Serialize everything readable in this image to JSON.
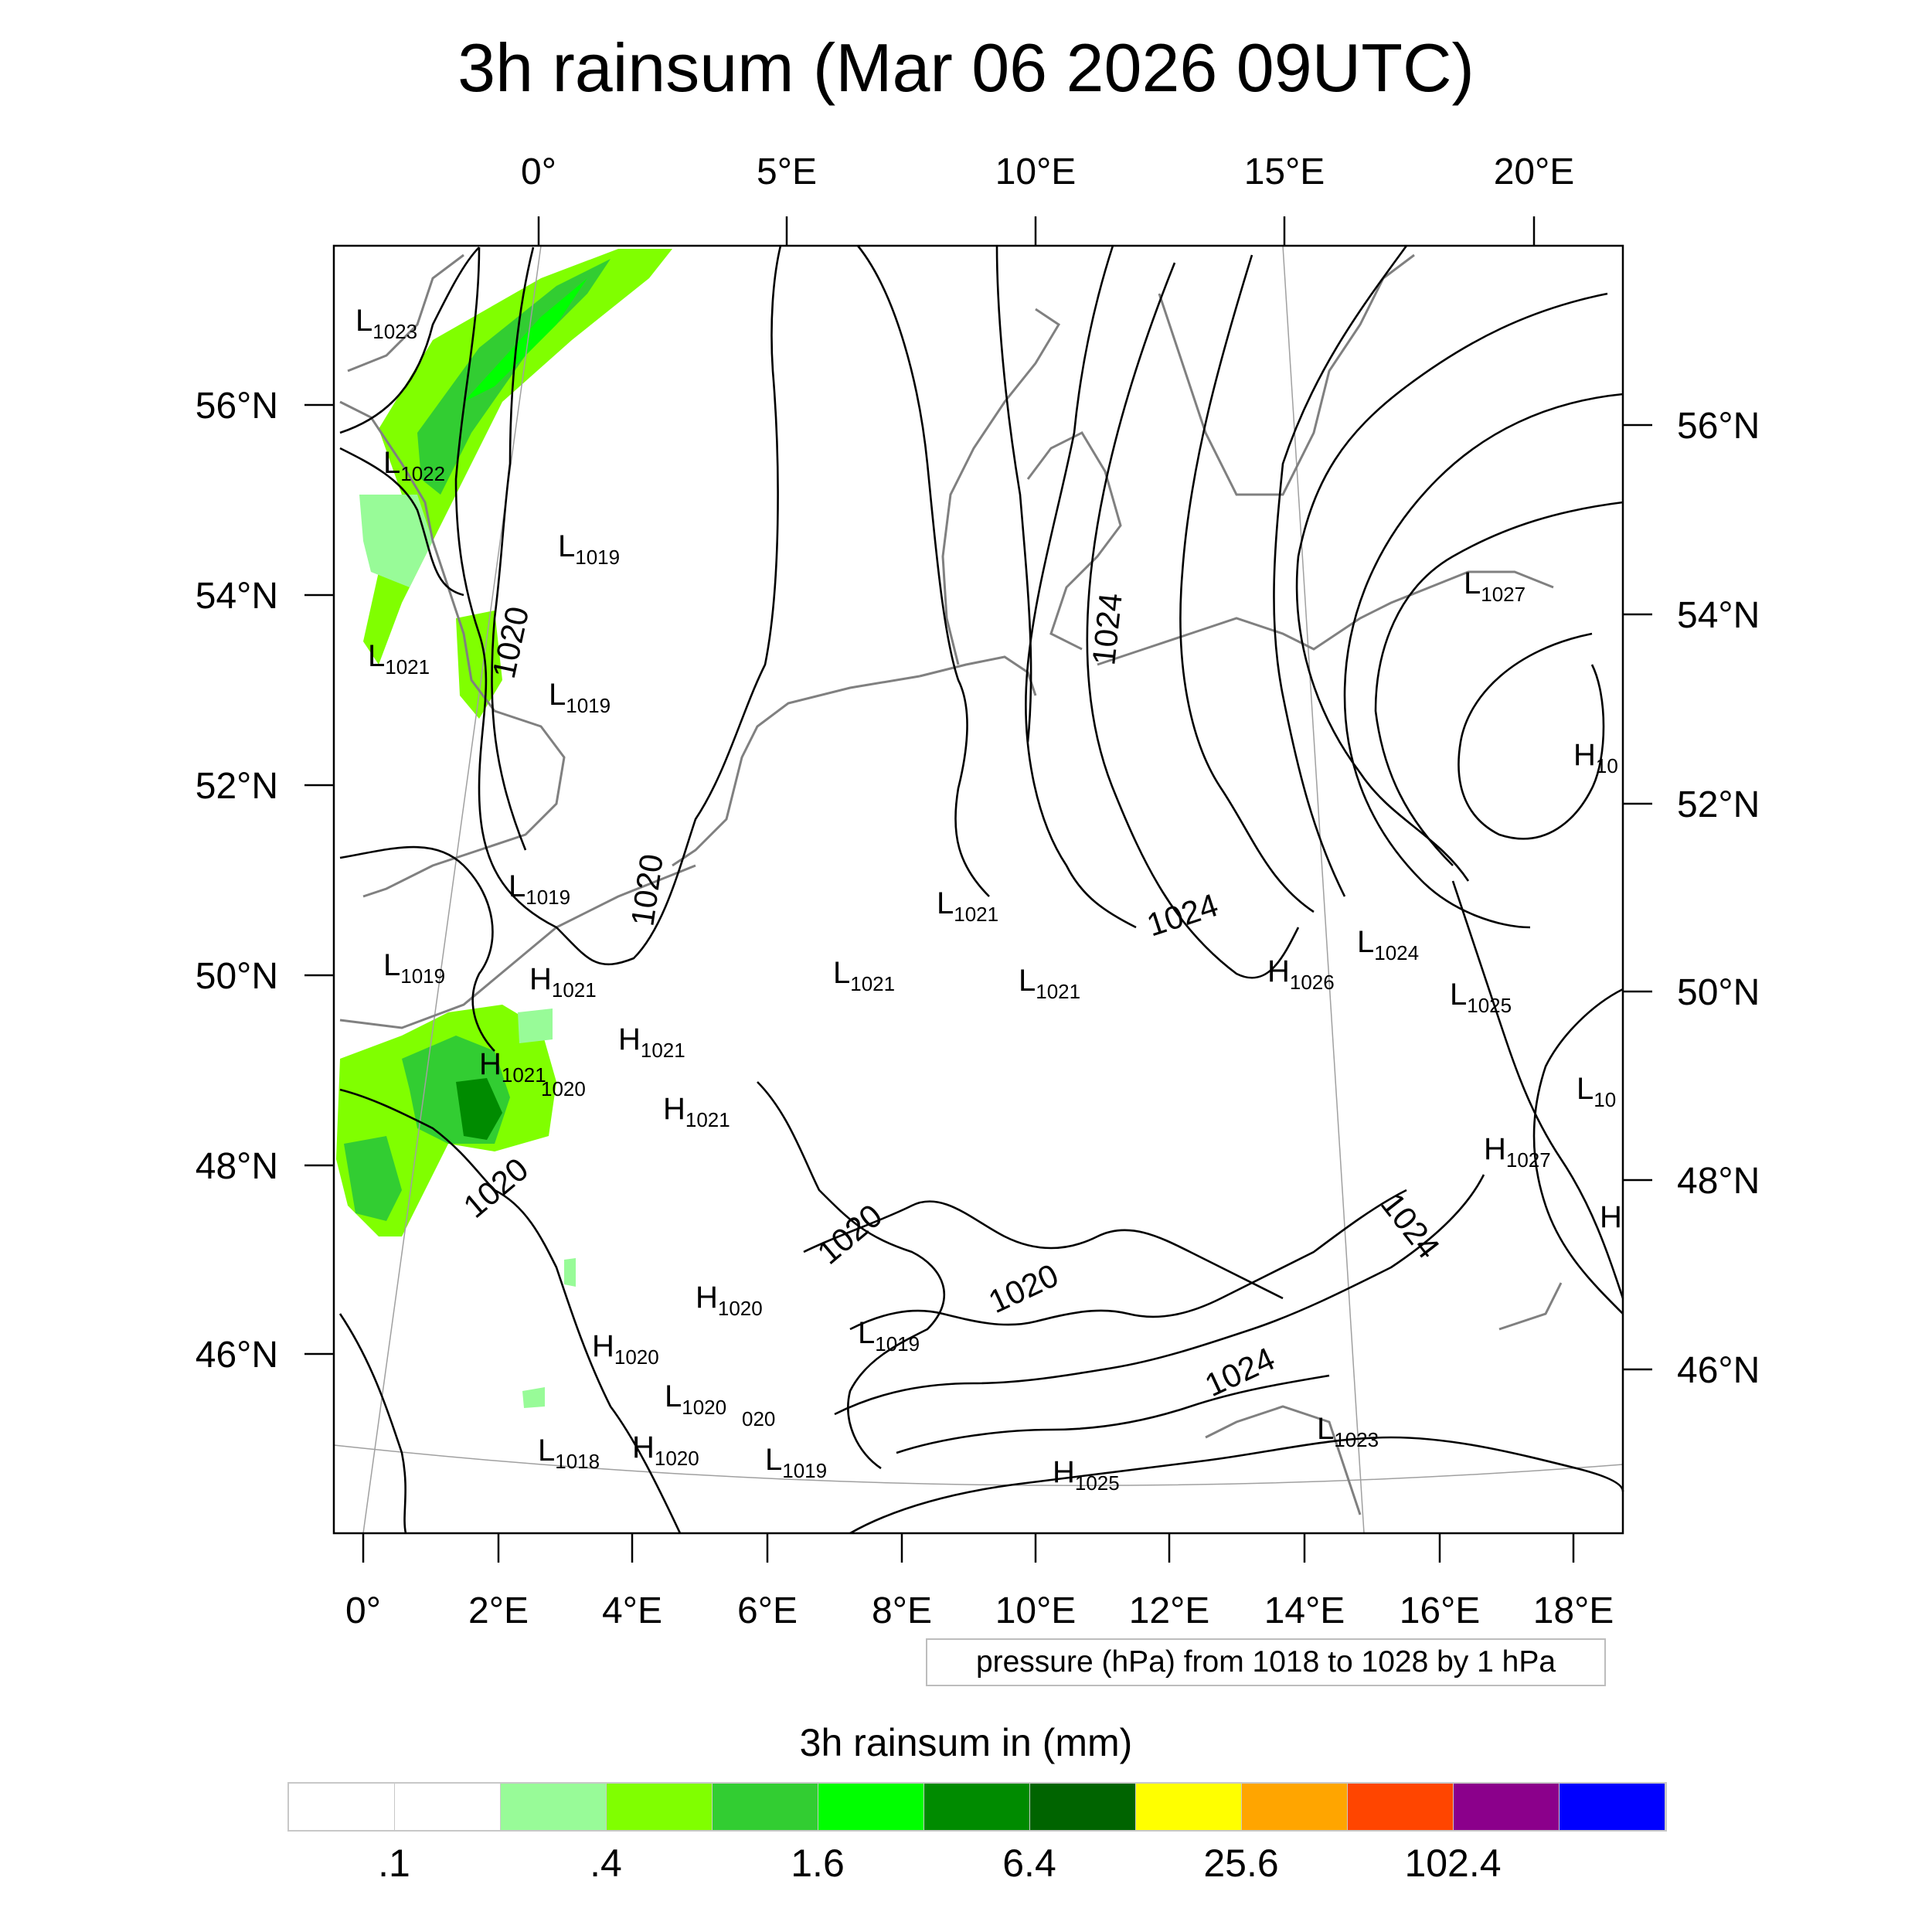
{
  "title": "3h rainsum (Mar 06 2026 09UTC)",
  "map": {
    "top_lon_labels": [
      "0°",
      "5°E",
      "10°E",
      "15°E",
      "20°E"
    ],
    "bottom_lon_labels": [
      "0°",
      "2°E",
      "4°E",
      "6°E",
      "8°E",
      "10°E",
      "12°E",
      "14°E",
      "16°E",
      "18°E"
    ],
    "left_lat_labels": [
      "56°N",
      "54°N",
      "52°N",
      "50°N",
      "48°N",
      "46°N"
    ],
    "right_lat_labels": [
      "56°N",
      "54°N",
      "52°N",
      "50°N",
      "48°N",
      "46°N"
    ],
    "isobar_labels": [
      "1020",
      "1020",
      "1020",
      "1020",
      "1020",
      "1024",
      "1024",
      "1024",
      "1024"
    ],
    "pressure_centers": [
      {
        "type": "L",
        "value": "1023"
      },
      {
        "type": "L",
        "value": "1022"
      },
      {
        "type": "L",
        "value": "1019"
      },
      {
        "type": "L",
        "value": "1021"
      },
      {
        "type": "L",
        "value": "1019"
      },
      {
        "type": "L",
        "value": "1019"
      },
      {
        "type": "L",
        "value": "1019"
      },
      {
        "type": "H",
        "value": "1021"
      },
      {
        "type": "H",
        "value": "1021"
      },
      {
        "type": "H",
        "value": "1021"
      },
      {
        "type": "H",
        "value": "1021"
      },
      {
        "type": "L",
        "value": "1021"
      },
      {
        "type": "L",
        "value": "1021"
      },
      {
        "type": "L",
        "value": "1021"
      },
      {
        "type": "H",
        "value": "1026"
      },
      {
        "type": "L",
        "value": "1024"
      },
      {
        "type": "L",
        "value": "1025"
      },
      {
        "type": "L",
        "value": "1027"
      },
      {
        "type": "H",
        "value": "10"
      },
      {
        "type": "L",
        "value": "10"
      },
      {
        "type": "H",
        "value": "1027"
      },
      {
        "type": "H",
        "value": ""
      },
      {
        "type": "H",
        "value": "1020"
      },
      {
        "type": "H",
        "value": "1020"
      },
      {
        "type": "L",
        "value": "1019"
      },
      {
        "type": "L",
        "value": "1020"
      },
      {
        "type": "L",
        "value": "1018"
      },
      {
        "type": "H",
        "value": "1020"
      },
      {
        "type": "L",
        "value": "1019"
      },
      {
        "type": "H",
        "value": "1025"
      },
      {
        "type": "L",
        "value": "1023"
      }
    ],
    "stray_labels": [
      "1020",
      "020"
    ]
  },
  "info_box": "pressure (hPa) from 1018 to 1028 by 1 hPa",
  "legend": {
    "title": "3h rainsum in (mm)",
    "colors": [
      "#ffffff",
      "#ffffff",
      "#98fb98",
      "#80ff00",
      "#32cd32",
      "#00ff00",
      "#008b00",
      "#006400",
      "#ffff00",
      "#ffa500",
      "#ff4500",
      "#8b008b",
      "#0000ff"
    ],
    "labels": [
      ".1",
      ".4",
      "1.6",
      "6.4",
      "25.6",
      "102.4"
    ]
  },
  "colors": {
    "coastline": "#808080",
    "isobar": "#000000",
    "graticule": "#a0a0a0",
    "frame": "#000000"
  }
}
